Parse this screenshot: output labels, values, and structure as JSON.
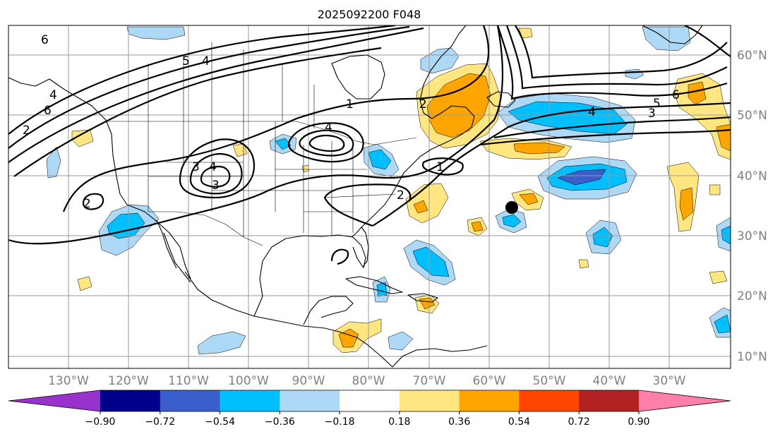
{
  "title": "2025092200 F048",
  "lat_labels": [
    "60°N",
    "50°N",
    "40°N",
    "30°N",
    "20°N",
    "10°N"
  ],
  "lon_labels": [
    "130°W",
    "120°W",
    "110°W",
    "100°W",
    "90°W",
    "80°W",
    "70°W",
    "60°W",
    "50°W",
    "40°W",
    "30°W"
  ],
  "colorbar": {
    "ticks": [
      "−0.90",
      "−0.72",
      "−0.54",
      "−0.36",
      "−0.18",
      "0.18",
      "0.36",
      "0.54",
      "0.72",
      "0.90"
    ],
    "colors": [
      "#9932cc",
      "#00008b",
      "#3a5fcd",
      "#00bfff",
      "#add8f6",
      "#ffffff",
      "#ffe680",
      "#ffa500",
      "#ff4500",
      "#b22222",
      "#ff7fab"
    ]
  },
  "contour_labels": [
    "6",
    "5",
    "4",
    "6",
    "4",
    "1",
    "2",
    "4",
    "3",
    "4",
    "3",
    "2",
    "1",
    "2",
    "2",
    "6",
    "5",
    "4",
    "3"
  ],
  "marker": "black-dot"
}
